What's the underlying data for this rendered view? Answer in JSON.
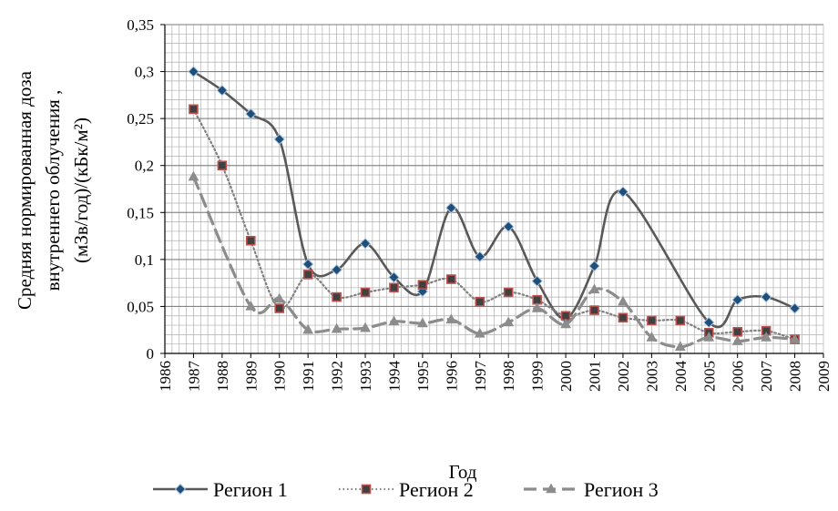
{
  "chart_data": {
    "type": "line",
    "xlabel": "Год",
    "ylabel_lines": [
      "Средняя нормированная доза",
      "внутреннего облучения ,",
      "(мЗв/год)/(кБк/м²)"
    ],
    "xlim": [
      1986,
      2009
    ],
    "ylim": [
      0,
      0.35
    ],
    "x_ticks": [
      "1986",
      "1987",
      "1988",
      "1989",
      "1990",
      "1991",
      "1992",
      "1993",
      "1994",
      "1995",
      "1996",
      "1997",
      "1998",
      "1999",
      "2000",
      "2001",
      "2002",
      "2003",
      "2004",
      "2005",
      "2006",
      "2007",
      "2008",
      "2009"
    ],
    "y_ticks": [
      "0",
      "0,05",
      "0,1",
      "0,15",
      "0,2",
      "0,25",
      "0,3",
      "0,35"
    ],
    "y_tick_values": [
      0,
      0.05,
      0.1,
      0.15,
      0.2,
      0.25,
      0.3,
      0.35
    ],
    "grid": true,
    "legend_position": "bottom",
    "series": [
      {
        "name": "Регион 1",
        "color": "#595959",
        "marker_fill": "#1f4e79",
        "marker": "diamond",
        "line_style": "solid",
        "points": [
          [
            1987,
            0.3
          ],
          [
            1988,
            0.28
          ],
          [
            1989,
            0.255
          ],
          [
            1990,
            0.228
          ],
          [
            1991,
            0.095
          ],
          [
            1992,
            0.089
          ],
          [
            1993,
            0.117
          ],
          [
            1994,
            0.081
          ],
          [
            1995,
            0.066
          ],
          [
            1996,
            0.155
          ],
          [
            1997,
            0.103
          ],
          [
            1998,
            0.135
          ],
          [
            1999,
            0.077
          ],
          [
            2000,
            0.037
          ],
          [
            2001,
            0.093
          ],
          [
            2002,
            0.172
          ],
          [
            2005,
            0.033
          ],
          [
            2006,
            0.057
          ],
          [
            2007,
            0.06
          ],
          [
            2008,
            0.048
          ]
        ]
      },
      {
        "name": "Регион 2",
        "color": "#808080",
        "marker_fill": "#404040",
        "marker_edge": "#c0504d",
        "marker": "square",
        "line_style": "dotted",
        "points": [
          [
            1987,
            0.26
          ],
          [
            1988,
            0.2
          ],
          [
            1989,
            0.12
          ],
          [
            1990,
            0.048
          ],
          [
            1991,
            0.084
          ],
          [
            1992,
            0.06
          ],
          [
            1993,
            0.065
          ],
          [
            1994,
            0.07
          ],
          [
            1995,
            0.073
          ],
          [
            1996,
            0.079
          ],
          [
            1997,
            0.055
          ],
          [
            1998,
            0.065
          ],
          [
            1999,
            0.057
          ],
          [
            2000,
            0.04
          ],
          [
            2001,
            0.046
          ],
          [
            2002,
            0.038
          ],
          [
            2003,
            0.035
          ],
          [
            2004,
            0.035
          ],
          [
            2005,
            0.022
          ],
          [
            2006,
            0.023
          ],
          [
            2007,
            0.024
          ],
          [
            2008,
            0.015
          ]
        ]
      },
      {
        "name": "Регион 3",
        "color": "#8c8c8c",
        "marker_fill": "#8c8c8c",
        "marker": "triangle",
        "line_style": "dashed",
        "points": [
          [
            1987,
            0.188
          ],
          [
            1989,
            0.05
          ],
          [
            1990,
            0.058
          ],
          [
            1991,
            0.025
          ],
          [
            1992,
            0.026
          ],
          [
            1993,
            0.027
          ],
          [
            1994,
            0.034
          ],
          [
            1995,
            0.032
          ],
          [
            1996,
            0.036
          ],
          [
            1997,
            0.021
          ],
          [
            1998,
            0.033
          ],
          [
            1999,
            0.048
          ],
          [
            2000,
            0.031
          ],
          [
            2001,
            0.068
          ],
          [
            2002,
            0.055
          ],
          [
            2003,
            0.017
          ],
          [
            2004,
            0.007
          ],
          [
            2005,
            0.017
          ],
          [
            2006,
            0.013
          ],
          [
            2007,
            0.017
          ],
          [
            2008,
            0.015
          ]
        ]
      }
    ]
  }
}
